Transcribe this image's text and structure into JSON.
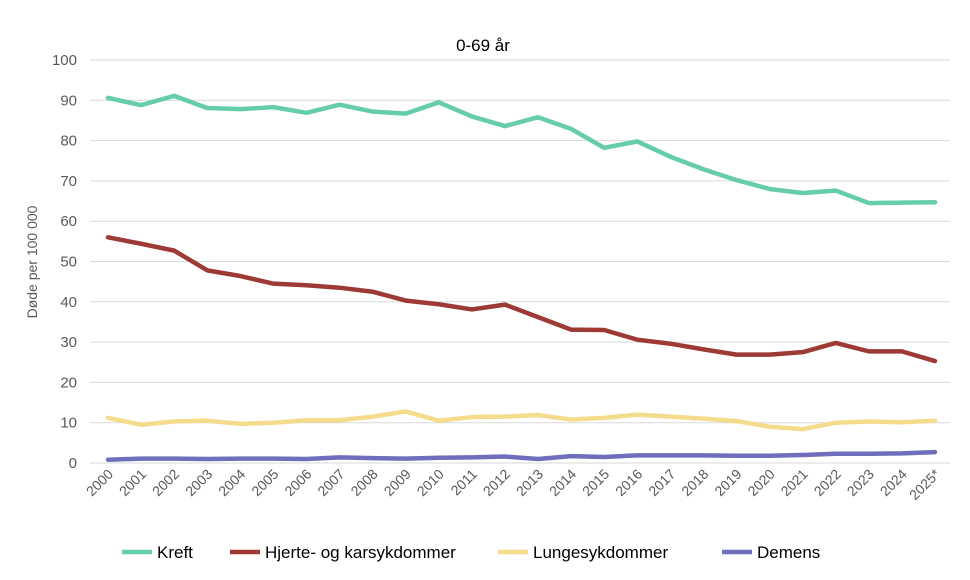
{
  "chart_data": {
    "type": "line",
    "title": "0-69 år",
    "xlabel": "",
    "ylabel": "Døde per 100 000",
    "ylim": [
      0,
      100
    ],
    "yticks": [
      0,
      10,
      20,
      30,
      40,
      50,
      60,
      70,
      80,
      90,
      100
    ],
    "grid": true,
    "legend_position": "bottom",
    "categories": [
      "2000",
      "2001",
      "2002",
      "2003",
      "2004",
      "2005",
      "2006",
      "2007",
      "2008",
      "2009",
      "2010",
      "2011",
      "2012",
      "2013",
      "2014",
      "2015",
      "2016",
      "2017",
      "2018",
      "2019",
      "2020",
      "2021",
      "2022",
      "2023",
      "2024",
      "2025*"
    ],
    "series": [
      {
        "name": "Kreft",
        "color": "#66cdaa",
        "values": [
          90.6,
          88.8,
          91.1,
          88.1,
          87.8,
          88.3,
          86.9,
          88.9,
          87.2,
          86.7,
          89.5,
          86.0,
          83.6,
          85.8,
          82.9,
          78.2,
          79.8,
          76.0,
          72.9,
          70.2,
          68.0,
          67.0,
          67.6,
          64.5,
          64.6,
          64.7
        ]
      },
      {
        "name": "Hjerte- og karsykdommer",
        "color": "#9e3a36",
        "values": [
          56.0,
          54.4,
          52.7,
          47.8,
          46.4,
          44.5,
          44.1,
          43.5,
          42.5,
          40.3,
          39.4,
          38.1,
          39.3,
          36.2,
          33.1,
          33.0,
          30.6,
          29.6,
          28.2,
          26.9,
          26.9,
          27.5,
          29.8,
          27.7,
          27.7,
          25.3
        ]
      },
      {
        "name": "Lungesykdommer",
        "color": "#f5dc8c",
        "values": [
          11.2,
          9.5,
          10.3,
          10.5,
          9.7,
          10.0,
          10.6,
          10.6,
          11.5,
          12.8,
          10.5,
          11.4,
          11.5,
          11.9,
          10.8,
          11.2,
          12.0,
          11.5,
          11.0,
          10.4,
          9.0,
          8.4,
          10.0,
          10.3,
          10.1,
          10.5
        ]
      },
      {
        "name": "Demens",
        "color": "#6e6ebc",
        "values": [
          0.8,
          1.1,
          1.1,
          1.0,
          1.1,
          1.1,
          1.0,
          1.4,
          1.2,
          1.1,
          1.3,
          1.4,
          1.6,
          1.0,
          1.7,
          1.5,
          1.9,
          1.9,
          1.9,
          1.8,
          1.8,
          2.0,
          2.3,
          2.3,
          2.4,
          2.7
        ]
      }
    ]
  }
}
